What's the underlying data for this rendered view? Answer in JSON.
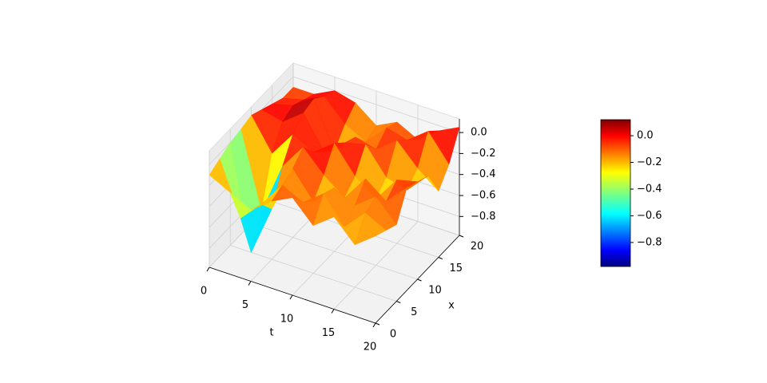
{
  "chart_data": {
    "type": "surface",
    "xlabel": "t",
    "ylabel": "x",
    "x": [
      0,
      2.5,
      5,
      7.5,
      10,
      12.5,
      15,
      17.5,
      20
    ],
    "y": [
      0,
      2.5,
      5,
      7.5,
      10,
      12.5,
      15,
      17.5,
      20
    ],
    "z": [
      [
        -0.1,
        -0.2,
        -0.3,
        -0.15,
        -0.05,
        -0.25,
        -0.1,
        -0.3,
        -0.15
      ],
      [
        -0.05,
        -0.55,
        -0.35,
        -0.1,
        -0.2,
        -0.05,
        -0.3,
        -0.1,
        -0.2
      ],
      [
        0.0,
        -0.98,
        -0.5,
        -0.05,
        -0.3,
        -0.1,
        -0.2,
        -0.05,
        -0.25
      ],
      [
        0.02,
        -0.7,
        -0.2,
        0.05,
        -0.15,
        -0.3,
        -0.05,
        -0.2,
        0.0
      ],
      [
        0.05,
        -0.25,
        0.0,
        -0.1,
        0.05,
        -0.2,
        -0.35,
        -0.1,
        -0.05
      ],
      [
        0.0,
        -0.05,
        0.1,
        -0.2,
        -0.05,
        0.0,
        -0.25,
        -0.3,
        -0.1
      ],
      [
        -0.05,
        0.0,
        0.13,
        -0.3,
        -0.1,
        -0.15,
        0.0,
        -0.2,
        -0.35
      ],
      [
        -0.1,
        -0.05,
        0.05,
        -0.15,
        -0.25,
        -0.05,
        -0.1,
        0.05,
        -0.2
      ],
      [
        -0.1,
        -0.1,
        0.0,
        -0.05,
        -0.2,
        -0.1,
        -0.2,
        -0.05,
        0.05
      ]
    ],
    "xlim": [
      0,
      20
    ],
    "ylim": [
      0,
      20
    ],
    "zlim": [
      -0.98,
      0.13
    ],
    "xticks": [
      0,
      5,
      10,
      15,
      20
    ],
    "yticks": [
      0,
      5,
      10,
      15,
      20
    ],
    "zticks": [
      {
        "value": 0.0,
        "label": "0.0"
      },
      {
        "value": -0.2,
        "label": "−0.2"
      },
      {
        "value": -0.4,
        "label": "−0.4"
      },
      {
        "value": -0.6,
        "label": "−0.6"
      },
      {
        "value": -0.8,
        "label": "−0.8"
      }
    ],
    "colormap": "jet",
    "grid": true,
    "clim": [
      -0.98,
      0.12
    ],
    "cticks": [
      {
        "value": 0.0,
        "label": "0.0"
      },
      {
        "value": -0.2,
        "label": "−0.2"
      },
      {
        "value": -0.4,
        "label": "−0.4"
      },
      {
        "value": -0.6,
        "label": "−0.6"
      },
      {
        "value": -0.8,
        "label": "−0.8"
      }
    ]
  }
}
